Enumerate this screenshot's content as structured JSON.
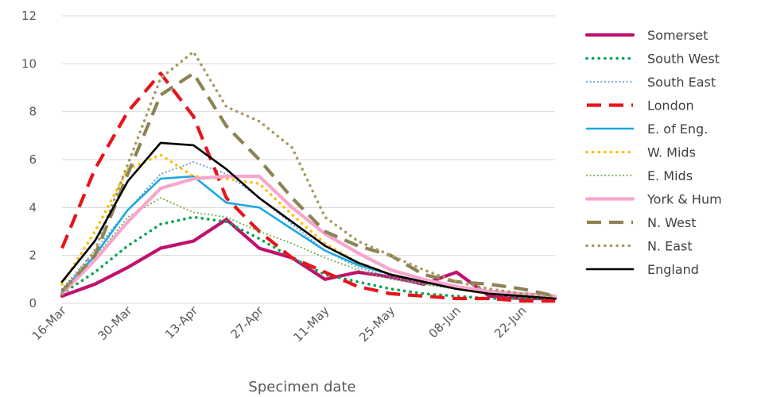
{
  "chart_data": {
    "type": "line",
    "title": "",
    "xlabel": "Specimen date",
    "ylabel": "",
    "x": [
      "16-Mar",
      "23-Mar",
      "30-Mar",
      "06-Apr",
      "13-Apr",
      "20-Apr",
      "27-Apr",
      "04-May",
      "11-May",
      "18-May",
      "25-May",
      "01-Jun",
      "08-Jun",
      "15-Jun",
      "22-Jun",
      "27-Jun"
    ],
    "x_tick_labels": [
      "16-Mar",
      "30-Mar",
      "13-Apr",
      "27-Apr",
      "11-May",
      "25-May",
      "08-Jun",
      "22-Jun"
    ],
    "ylim": [
      0,
      12
    ],
    "y_ticks": [
      0,
      2,
      4,
      6,
      8,
      10,
      12
    ],
    "grid": "horizontal",
    "legend_position": "right",
    "series": [
      {
        "name": "Somerset",
        "color": "#c0116d",
        "style": "solid-thick",
        "values": [
          0.3,
          0.8,
          1.5,
          2.3,
          2.6,
          3.5,
          2.3,
          1.9,
          1.0,
          1.3,
          1.1,
          0.8,
          1.3,
          0.3,
          0.2,
          0.2
        ]
      },
      {
        "name": "South West",
        "color": "#00a651",
        "style": "dotted-round",
        "values": [
          0.4,
          1.3,
          2.4,
          3.3,
          3.6,
          3.4,
          2.7,
          1.9,
          1.2,
          0.9,
          0.6,
          0.4,
          0.3,
          0.2,
          0.2,
          0.2
        ]
      },
      {
        "name": "South East",
        "color": "#5b9bd5",
        "style": "dotted-fine",
        "values": [
          0.6,
          2.2,
          3.9,
          5.4,
          5.9,
          5.4,
          4.4,
          3.3,
          2.2,
          1.5,
          1.1,
          0.8,
          0.6,
          0.4,
          0.3,
          0.2
        ]
      },
      {
        "name": "London",
        "color": "#e8141b",
        "style": "dashed-long",
        "values": [
          2.3,
          5.6,
          8.0,
          9.6,
          7.8,
          4.4,
          3.0,
          1.9,
          1.3,
          0.7,
          0.4,
          0.3,
          0.2,
          0.2,
          0.1,
          0.1
        ]
      },
      {
        "name": "E. of Eng.",
        "color": "#1da9df",
        "style": "solid",
        "values": [
          0.5,
          2.0,
          3.9,
          5.2,
          5.3,
          4.2,
          4.0,
          3.1,
          2.2,
          1.6,
          1.2,
          0.9,
          0.7,
          0.5,
          0.4,
          0.3
        ]
      },
      {
        "name": "W. Mids",
        "color": "#ffc000",
        "style": "dotted-round",
        "values": [
          0.8,
          3.0,
          5.6,
          6.2,
          5.3,
          5.2,
          5.0,
          3.7,
          2.5,
          1.7,
          1.2,
          0.9,
          0.6,
          0.4,
          0.3,
          0.2
        ]
      },
      {
        "name": "E. Mids",
        "color": "#70ad47",
        "style": "dotted-fine",
        "values": [
          0.4,
          1.9,
          3.6,
          4.4,
          3.8,
          3.6,
          3.0,
          2.5,
          1.9,
          1.4,
          1.0,
          0.8,
          0.6,
          0.4,
          0.3,
          0.2
        ]
      },
      {
        "name": "York & Hum",
        "color": "#f8a5cf",
        "style": "solid-thick",
        "values": [
          0.4,
          1.8,
          3.4,
          4.8,
          5.2,
          5.3,
          5.3,
          4.0,
          2.9,
          2.1,
          1.4,
          1.0,
          0.7,
          0.5,
          0.4,
          0.3
        ]
      },
      {
        "name": "N. West",
        "color": "#8c8253",
        "style": "dashed-long",
        "values": [
          0.5,
          2.0,
          5.4,
          8.7,
          9.6,
          7.4,
          6.0,
          4.4,
          3.0,
          2.4,
          2.0,
          1.2,
          0.9,
          0.8,
          0.6,
          0.3
        ]
      },
      {
        "name": "N. East",
        "color": "#a89a63",
        "style": "dotted-round",
        "values": [
          0.4,
          2.2,
          5.8,
          9.4,
          10.5,
          8.2,
          7.6,
          6.5,
          3.6,
          2.6,
          2.0,
          1.4,
          0.9,
          0.6,
          0.4,
          0.3
        ]
      },
      {
        "name": "England",
        "color": "#000000",
        "style": "solid",
        "values": [
          0.9,
          2.6,
          5.1,
          6.7,
          6.6,
          5.6,
          4.4,
          3.4,
          2.4,
          1.7,
          1.2,
          0.9,
          0.6,
          0.4,
          0.3,
          0.2
        ]
      }
    ]
  }
}
